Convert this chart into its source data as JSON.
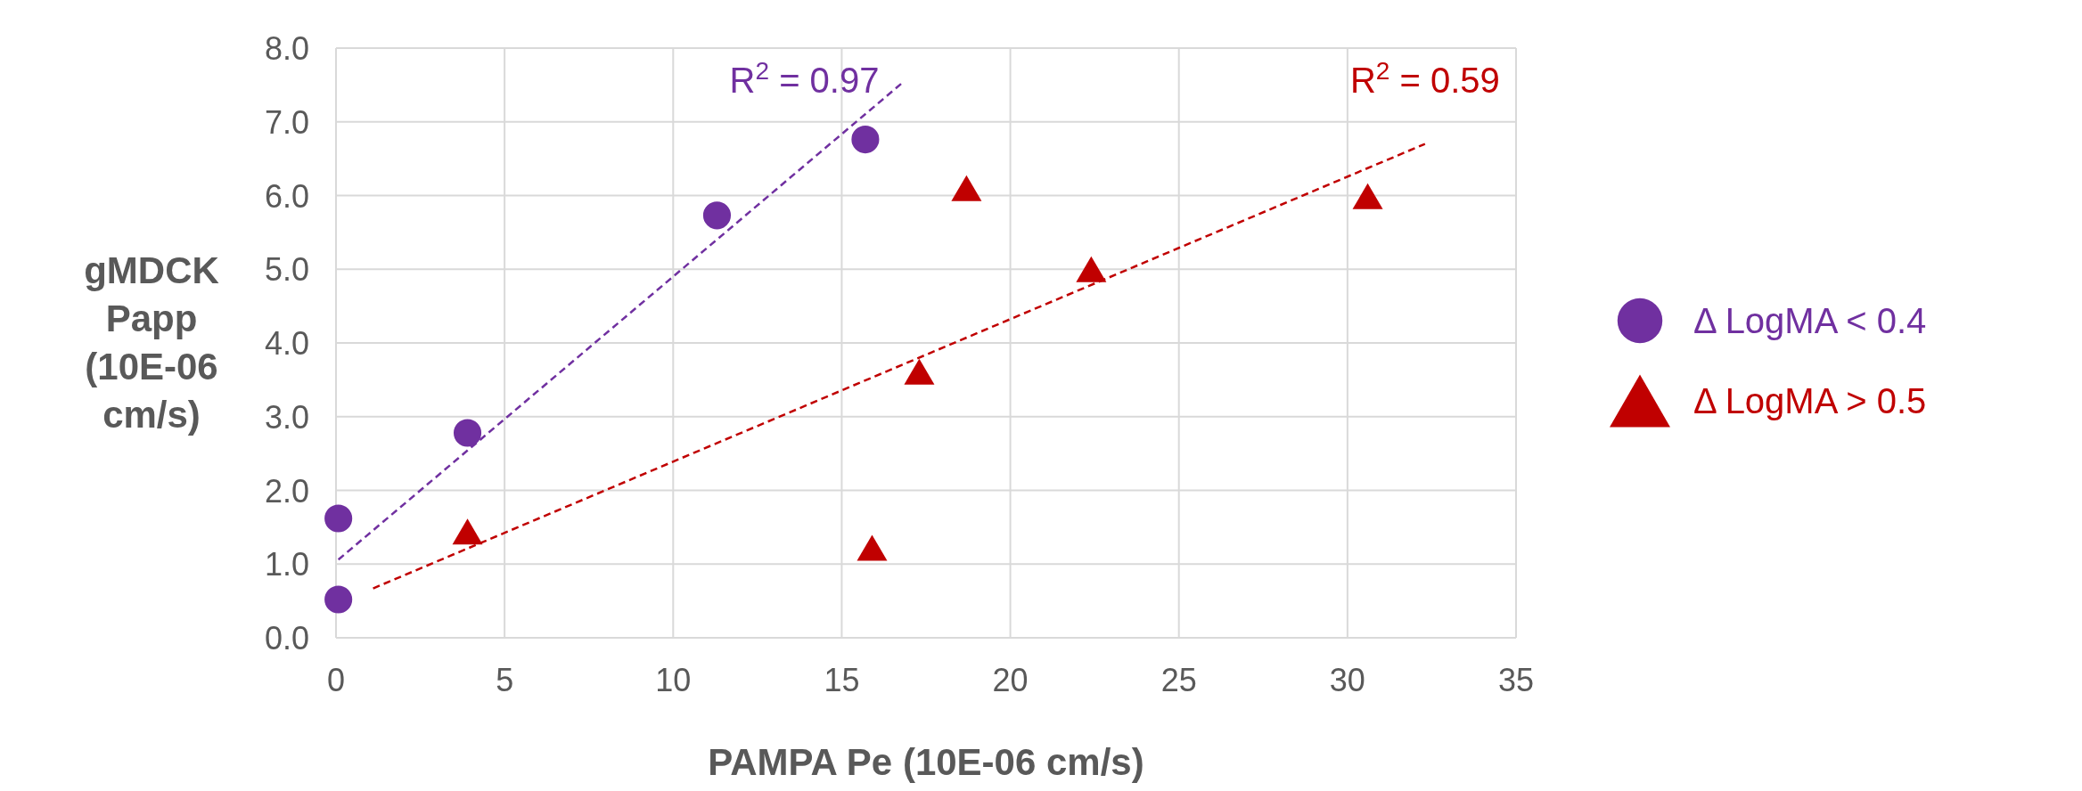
{
  "chart_data": {
    "type": "scatter",
    "xlabel": "PAMPA Pe (10E-06 cm/s)",
    "ylabel": "gMDCK Papp (10E-06 cm/s)",
    "xlim": [
      0,
      35
    ],
    "xticks": [
      0,
      5,
      10,
      15,
      20,
      25,
      30,
      35
    ],
    "ylim": [
      0,
      8
    ],
    "yticks": [
      {
        "value": 0,
        "label": "0.0"
      },
      {
        "value": 1,
        "label": "1.0"
      },
      {
        "value": 2,
        "label": "2.0"
      },
      {
        "value": 3,
        "label": "3.0"
      },
      {
        "value": 4,
        "label": "4.0"
      },
      {
        "value": 5,
        "label": "5.0"
      },
      {
        "value": 6,
        "label": "6.0"
      },
      {
        "value": 7,
        "label": "7.0"
      },
      {
        "value": 8,
        "label": "8.0"
      }
    ],
    "grid": true,
    "legend": "right",
    "series": [
      {
        "name": "Δ LogMA < 0.4",
        "marker": "circle",
        "color": "#7030a0",
        "x": [
          0.07,
          0.07,
          3.9,
          11.3,
          15.7
        ],
        "values": [
          0.52,
          1.62,
          2.78,
          5.73,
          6.76
        ]
      },
      {
        "name": "Δ LogMA > 0.5",
        "marker": "triangle",
        "color": "#c00000",
        "x": [
          3.9,
          15.9,
          17.3,
          18.7,
          22.4,
          30.6
        ],
        "values": [
          1.44,
          1.22,
          3.61,
          6.1,
          5.0,
          5.99
        ]
      },
      {
        "type": "line",
        "line_style": "dashed",
        "color": "#7030a0",
        "x": [
          0.07,
          16.8
        ],
        "values": [
          1.06,
          7.53
        ]
      },
      {
        "type": "line",
        "line_style": "dashed",
        "color": "#c00000",
        "x": [
          1.1,
          32.3
        ],
        "values": [
          0.67,
          6.7
        ]
      }
    ],
    "annotations": [
      "R$^{2}$ = 0.97",
      "R$^{2}$ = 0.59"
    ]
  }
}
